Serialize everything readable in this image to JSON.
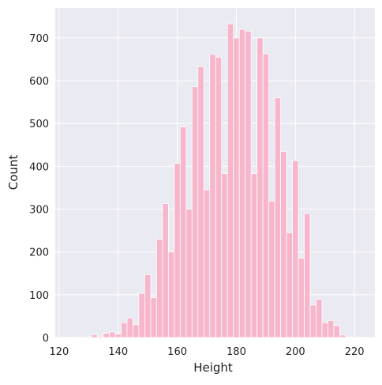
{
  "chart_data": {
    "type": "histogram",
    "xlabel": "Height",
    "ylabel": "Count",
    "bins": [
      121,
      123,
      125,
      127,
      129,
      131,
      133,
      135,
      137,
      139,
      141,
      143,
      145,
      147,
      149,
      151,
      153,
      155,
      157,
      159,
      161,
      163,
      165,
      167,
      169,
      171,
      173,
      175,
      177,
      179,
      181,
      183,
      185,
      187,
      189,
      191,
      193,
      195,
      197,
      199,
      201,
      203,
      205,
      207,
      209,
      211,
      213,
      215,
      217,
      219,
      221,
      223
    ],
    "values": [
      1,
      0,
      1,
      0,
      2,
      7,
      3,
      10,
      13,
      8,
      35,
      46,
      30,
      103,
      147,
      93,
      230,
      313,
      200,
      407,
      492,
      300,
      586,
      633,
      345,
      662,
      655,
      383,
      733,
      700,
      720,
      716,
      383,
      700,
      663,
      319,
      560,
      435,
      245,
      413,
      185,
      290,
      76,
      89,
      35,
      40,
      28,
      6,
      1,
      0,
      1
    ],
    "color": "#f7b6cb",
    "xlim": [
      118.7,
      226.9
    ],
    "xticks": [
      120,
      140,
      160,
      180,
      200,
      220
    ],
    "ylim": [
      0,
      770
    ],
    "yticks": [
      0,
      100,
      200,
      300,
      400,
      500,
      600,
      700
    ],
    "grid": true
  }
}
